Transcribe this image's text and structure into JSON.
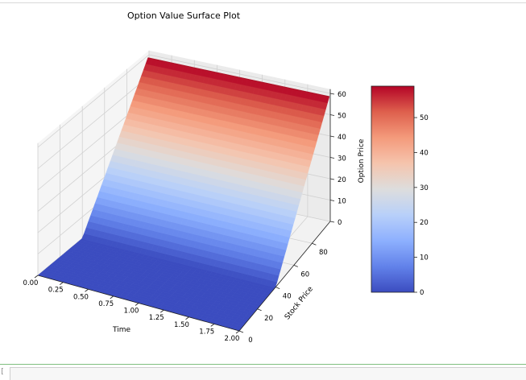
{
  "chart_data": {
    "type": "surface",
    "title": "Option Value Surface Plot",
    "xlabel": "Time",
    "ylabel": "Stock Price",
    "zlabel": "Option Price",
    "colormap": "coolwarm",
    "grid": true,
    "x_range": [
      0,
      2
    ],
    "y_range": [
      0,
      100
    ],
    "z_range": [
      0,
      60
    ],
    "strike": 40,
    "surface_function": "max(stock_price - 40, 0), constant across time",
    "sample_points": [
      {
        "time": 0.0,
        "stock_price": 0,
        "option_price": 0
      },
      {
        "time": 0.0,
        "stock_price": 40,
        "option_price": 0
      },
      {
        "time": 0.0,
        "stock_price": 70,
        "option_price": 30
      },
      {
        "time": 0.0,
        "stock_price": 99,
        "option_price": 59
      },
      {
        "time": 2.0,
        "stock_price": 40,
        "option_price": 0
      },
      {
        "time": 2.0,
        "stock_price": 99,
        "option_price": 59
      }
    ],
    "x_ticks": [
      "0.00",
      "0.25",
      "0.50",
      "0.75",
      "1.00",
      "1.25",
      "1.50",
      "1.75",
      "2.00"
    ],
    "y_ticks": [
      "0",
      "20",
      "40",
      "60",
      "80"
    ],
    "z_ticks": [
      "0",
      "10",
      "20",
      "30",
      "40",
      "50",
      "60"
    ],
    "colorbar": {
      "range": [
        0,
        59
      ],
      "ticks": [
        "0",
        "10",
        "20",
        "30",
        "40",
        "50"
      ],
      "position": "right"
    }
  },
  "ui": {
    "prompt": "[ ]:"
  }
}
